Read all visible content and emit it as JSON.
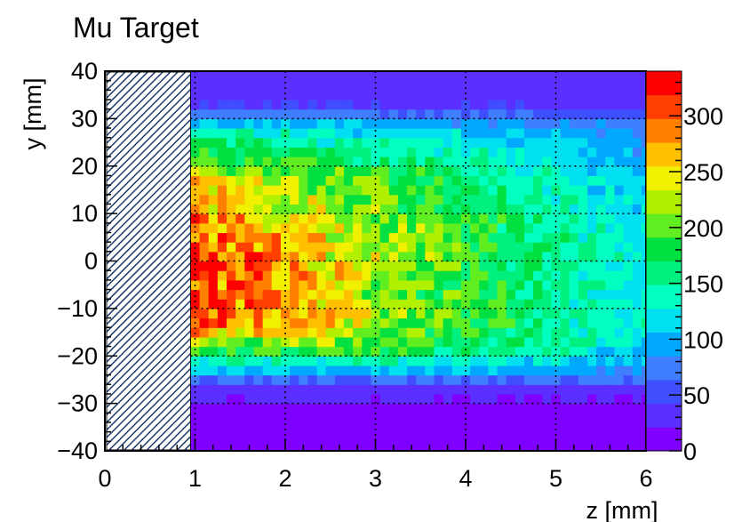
{
  "chart_data": {
    "type": "heatmap",
    "title": "Mu Target",
    "xlabel": "z [mm]",
    "ylabel": "y [mm]",
    "xlim": [
      0,
      6
    ],
    "ylim": [
      -40,
      40
    ],
    "x_ticks": [
      "0",
      "1",
      "2",
      "3",
      "4",
      "5",
      "6"
    ],
    "y_ticks": [
      "−40",
      "−30",
      "−20",
      "−10",
      "0",
      "10",
      "20",
      "30",
      "40"
    ],
    "colorbar_ticks": [
      "0",
      "50",
      "100",
      "150",
      "200",
      "250",
      "300"
    ],
    "zlim": [
      0,
      340
    ],
    "grid": true,
    "grid_style": "dotted",
    "hatched_region": {
      "z_from": 0,
      "z_to": 0.95
    },
    "x_bin_width": 0.1,
    "y_bin_width": 2,
    "z_start": 0.95,
    "density_profile": {
      "z": [
        1.0,
        1.5,
        2.0,
        2.5,
        3.0,
        3.5,
        4.0,
        4.5,
        5.0,
        5.5,
        6.0
      ],
      "y": [
        -40,
        -36,
        -32,
        -28,
        -26,
        -24,
        -22,
        -20,
        -18,
        -16,
        -14,
        -12,
        -10,
        -8,
        -6,
        -4,
        -2,
        0,
        2,
        4,
        6,
        8,
        10,
        12,
        14,
        16,
        18,
        20,
        22,
        24,
        26,
        28,
        30,
        32,
        34,
        36,
        40
      ],
      "values": [
        [
          10,
          10,
          10,
          10,
          10,
          10,
          10,
          10,
          10,
          10,
          10
        ],
        [
          10,
          10,
          10,
          10,
          10,
          10,
          10,
          10,
          10,
          10,
          10
        ],
        [
          15,
          15,
          15,
          15,
          15,
          15,
          15,
          15,
          15,
          15,
          15
        ],
        [
          25,
          25,
          25,
          25,
          25,
          25,
          25,
          25,
          25,
          25,
          25
        ],
        [
          45,
          45,
          45,
          45,
          45,
          45,
          45,
          45,
          45,
          45,
          45
        ],
        [
          85,
          85,
          85,
          85,
          85,
          85,
          85,
          85,
          80,
          80,
          80
        ],
        [
          125,
          125,
          125,
          125,
          125,
          120,
          115,
          110,
          100,
          95,
          95
        ],
        [
          165,
          160,
          160,
          160,
          160,
          155,
          150,
          145,
          130,
          115,
          100
        ],
        [
          200,
          200,
          200,
          200,
          195,
          185,
          170,
          160,
          150,
          130,
          115
        ],
        [
          250,
          240,
          230,
          220,
          205,
          195,
          180,
          170,
          150,
          140,
          125
        ],
        [
          295,
          280,
          270,
          245,
          220,
          205,
          190,
          175,
          150,
          140,
          130
        ],
        [
          315,
          305,
          285,
          255,
          230,
          210,
          195,
          180,
          155,
          140,
          130
        ],
        [
          320,
          300,
          270,
          255,
          225,
          205,
          185,
          170,
          150,
          140,
          125
        ],
        [
          310,
          290,
          265,
          245,
          220,
          200,
          185,
          170,
          150,
          135,
          125
        ],
        [
          300,
          285,
          260,
          240,
          215,
          200,
          180,
          165,
          145,
          135,
          120
        ],
        [
          320,
          300,
          275,
          250,
          225,
          210,
          185,
          170,
          150,
          140,
          125
        ],
        [
          335,
          310,
          280,
          255,
          230,
          210,
          190,
          175,
          150,
          140,
          125
        ],
        [
          330,
          305,
          280,
          255,
          230,
          210,
          195,
          175,
          155,
          140,
          130
        ],
        [
          300,
          285,
          265,
          245,
          220,
          205,
          190,
          170,
          150,
          140,
          125
        ],
        [
          295,
          280,
          260,
          240,
          215,
          200,
          185,
          170,
          150,
          135,
          125
        ],
        [
          300,
          285,
          265,
          245,
          225,
          205,
          185,
          170,
          150,
          140,
          125
        ],
        [
          285,
          270,
          250,
          235,
          215,
          200,
          180,
          165,
          145,
          130,
          120
        ],
        [
          280,
          260,
          245,
          225,
          210,
          195,
          180,
          160,
          145,
          130,
          115
        ],
        [
          260,
          245,
          230,
          220,
          205,
          190,
          175,
          155,
          140,
          125,
          110
        ],
        [
          255,
          245,
          230,
          215,
          200,
          185,
          170,
          155,
          135,
          120,
          110
        ],
        [
          255,
          240,
          225,
          210,
          200,
          180,
          165,
          150,
          135,
          120,
          105
        ],
        [
          240,
          225,
          215,
          200,
          190,
          175,
          160,
          145,
          130,
          115,
          100
        ],
        [
          210,
          200,
          195,
          185,
          175,
          160,
          150,
          135,
          125,
          110,
          100
        ],
        [
          190,
          180,
          175,
          165,
          160,
          145,
          140,
          130,
          120,
          105,
          95
        ],
        [
          175,
          165,
          160,
          150,
          145,
          135,
          130,
          120,
          110,
          100,
          90
        ],
        [
          155,
          150,
          145,
          140,
          130,
          125,
          120,
          115,
          105,
          95,
          85
        ],
        [
          130,
          125,
          120,
          115,
          110,
          105,
          100,
          95,
          90,
          85,
          80
        ],
        [
          100,
          95,
          95,
          90,
          85,
          80,
          75,
          75,
          70,
          65,
          60
        ],
        [
          55,
          55,
          55,
          55,
          50,
          50,
          50,
          50,
          45,
          45,
          45
        ],
        [
          30,
          30,
          30,
          30,
          30,
          30,
          30,
          30,
          30,
          30,
          30
        ],
        [
          25,
          25,
          25,
          25,
          25,
          25,
          25,
          25,
          25,
          25,
          25
        ],
        [
          25,
          25,
          25,
          25,
          25,
          25,
          25,
          25,
          25,
          25,
          25
        ]
      ]
    }
  },
  "colors": {
    "palette": [
      "#8000ff",
      "#5b2fff",
      "#3f4fff",
      "#3f7fff",
      "#00a8ff",
      "#00e0f0",
      "#00ffc0",
      "#00f080",
      "#00e040",
      "#60ee20",
      "#b0f000",
      "#f0f000",
      "#ffc000",
      "#ff8000",
      "#ff4000",
      "#ff0000"
    ],
    "hatch": "#1f3a6e",
    "gridline": "#000000"
  }
}
